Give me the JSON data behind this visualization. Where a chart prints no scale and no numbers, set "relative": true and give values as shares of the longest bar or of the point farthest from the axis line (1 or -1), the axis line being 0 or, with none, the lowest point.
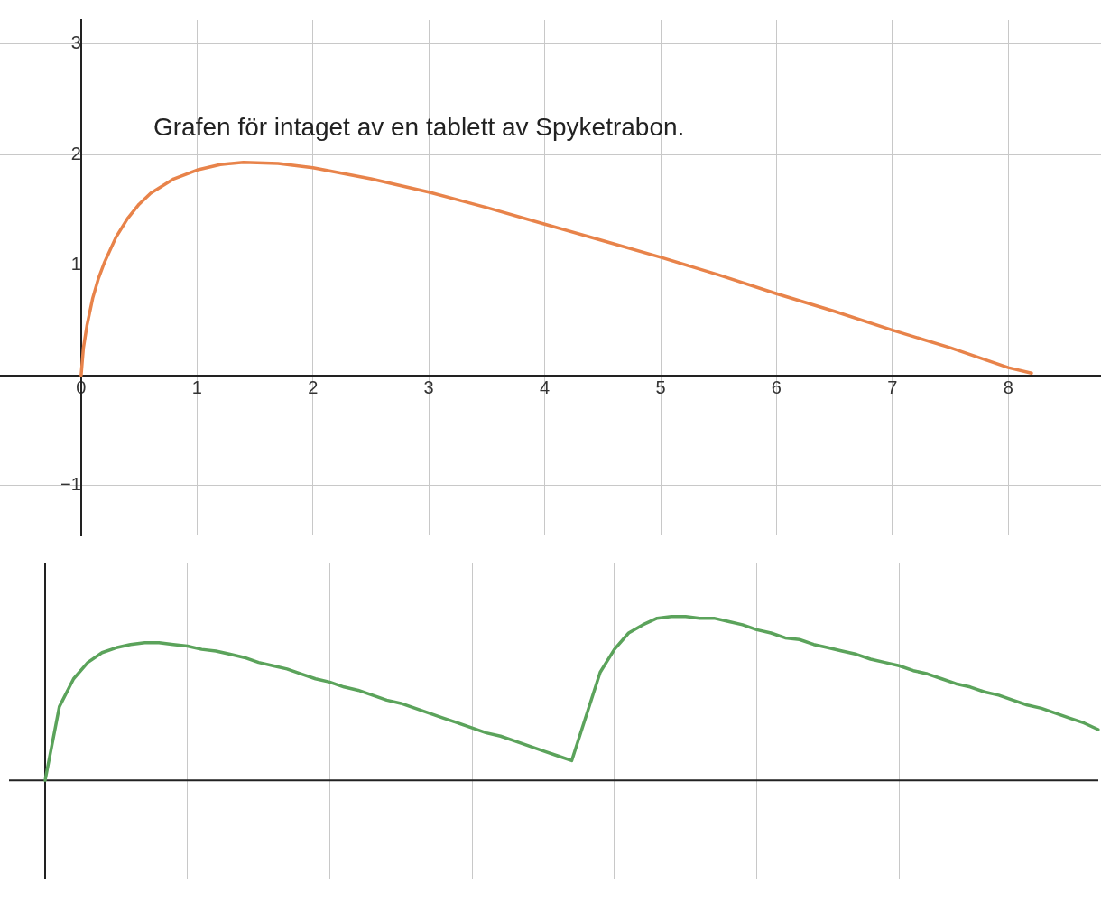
{
  "chart_data": [
    {
      "type": "line",
      "title": "Grafen för intaget av en tablett av Spyketrabon.",
      "xlim": [
        -0.7,
        8.8
      ],
      "ylim": [
        -1.45,
        3.22
      ],
      "xticks": [
        0,
        1,
        2,
        3,
        4,
        5,
        6,
        7,
        8
      ],
      "yticks": [
        -1,
        1,
        2,
        3
      ],
      "grid": true,
      "series": [
        {
          "color": "#e8834a",
          "x": [
            0,
            0.02,
            0.05,
            0.1,
            0.15,
            0.2,
            0.3,
            0.4,
            0.5,
            0.6,
            0.8,
            1,
            1.2,
            1.4,
            1.7,
            2,
            2.5,
            3,
            3.5,
            4,
            4.5,
            5,
            5.5,
            6,
            6.5,
            7,
            7.5,
            8,
            8.2
          ],
          "values": [
            0,
            0.25,
            0.45,
            0.7,
            0.88,
            1.02,
            1.25,
            1.42,
            1.55,
            1.65,
            1.78,
            1.86,
            1.91,
            1.93,
            1.92,
            1.88,
            1.78,
            1.66,
            1.52,
            1.37,
            1.22,
            1.07,
            0.91,
            0.74,
            0.58,
            0.41,
            0.25,
            0.07,
            0.02
          ]
        }
      ]
    },
    {
      "type": "line",
      "relative": true,
      "grid": "x",
      "categories": [
        null,
        null,
        null,
        null,
        null,
        null,
        null,
        null,
        null,
        null,
        null,
        null,
        null,
        null,
        null,
        null,
        null,
        null,
        null,
        null,
        null,
        null,
        null,
        null,
        null,
        null,
        null,
        null,
        null,
        null,
        null,
        null,
        null,
        null,
        null,
        null,
        null,
        null,
        null,
        null,
        null,
        null,
        null,
        null,
        null,
        null,
        null,
        null,
        null,
        null,
        null,
        null,
        null,
        null,
        null,
        null,
        null,
        null,
        null,
        null,
        null,
        null,
        null,
        null,
        null,
        null,
        null,
        null,
        null,
        null,
        null,
        null,
        null,
        null,
        null
      ],
      "series": [
        {
          "color": "#5ba35b",
          "values": [
            0,
            0.45,
            0.62,
            0.72,
            0.78,
            0.81,
            0.83,
            0.84,
            0.84,
            0.83,
            0.82,
            0.8,
            0.79,
            0.77,
            0.75,
            0.72,
            0.7,
            0.68,
            0.65,
            0.62,
            0.6,
            0.57,
            0.55,
            0.52,
            0.49,
            0.47,
            0.44,
            0.41,
            0.38,
            0.35,
            0.32,
            0.29,
            0.27,
            0.24,
            0.21,
            0.18,
            0.15,
            0.12,
            0.39,
            0.66,
            0.8,
            0.9,
            0.95,
            0.99,
            1,
            1,
            0.99,
            0.99,
            0.97,
            0.95,
            0.92,
            0.9,
            0.87,
            0.86,
            0.83,
            0.81,
            0.79,
            0.77,
            0.74,
            0.72,
            0.7,
            0.67,
            0.65,
            0.62,
            0.59,
            0.57,
            0.54,
            0.52,
            0.49,
            0.46,
            0.44,
            0.41,
            0.38,
            0.35,
            0.31
          ]
        }
      ]
    }
  ]
}
